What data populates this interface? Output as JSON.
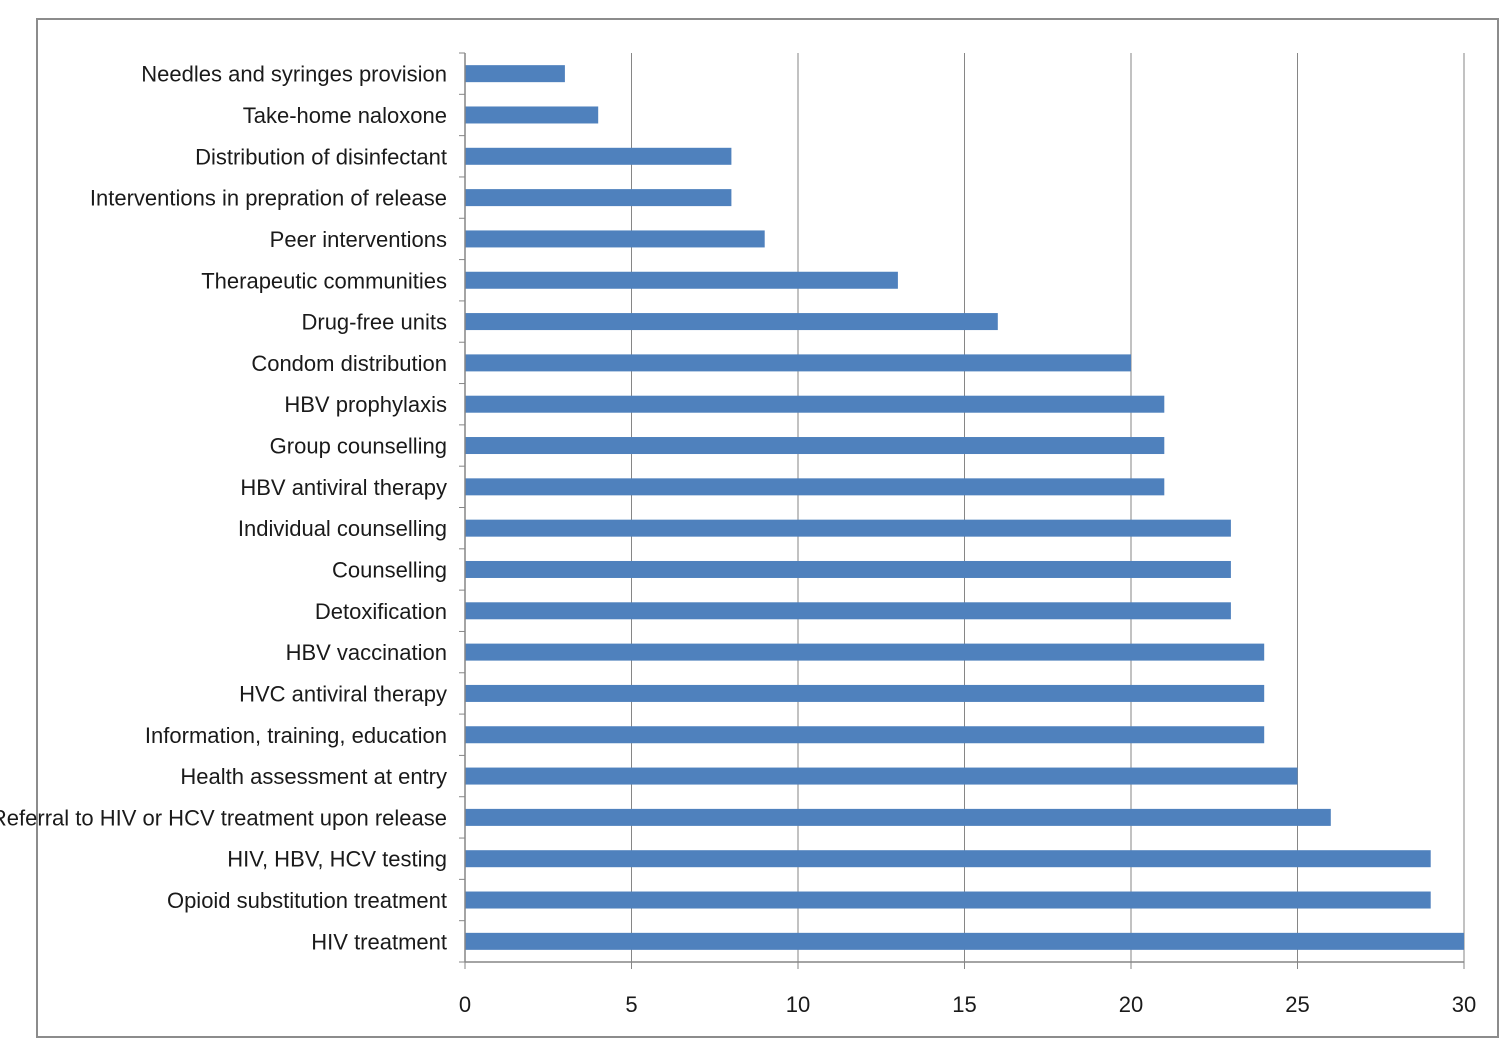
{
  "chart_data": {
    "type": "bar",
    "orientation": "horizontal",
    "title": "",
    "xlabel": "",
    "ylabel": "",
    "categories": [
      "Needles and syringes provision",
      "Take-home naloxone",
      "Distribution of disinfectant",
      "Interventions in prepration of release",
      "Peer interventions",
      "Therapeutic communities",
      "Drug-free units",
      "Condom distribution",
      "HBV prophylaxis",
      "Group counselling",
      "HBV antiviral therapy",
      "Individual counselling",
      "Counselling",
      "Detoxification",
      "HBV vaccination",
      "HVC antiviral therapy",
      "Information, training, education",
      "Health assessment at entry",
      "Referral to HIV or HCV treatment upon release",
      "HIV, HBV, HCV testing",
      "Opioid substitution treatment",
      "HIV treatment"
    ],
    "values": [
      3,
      4,
      8,
      8,
      9,
      13,
      16,
      20,
      21,
      21,
      21,
      23,
      23,
      23,
      24,
      24,
      24,
      25,
      26,
      29,
      29,
      30
    ],
    "xlim": [
      0,
      30
    ],
    "xticks": [
      0,
      5,
      10,
      15,
      20,
      25,
      30
    ],
    "xtick_labels": [
      "0",
      "5",
      "10",
      "15",
      "20",
      "25",
      "30"
    ],
    "grid": "vertical",
    "legend": "none",
    "bar_color": "#4f81bd"
  }
}
